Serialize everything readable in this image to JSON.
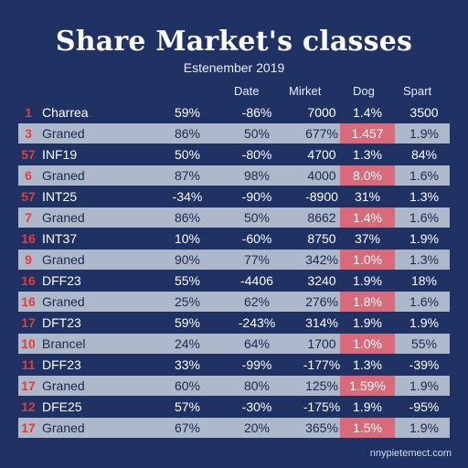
{
  "title": "Share Market's classes",
  "subtitle": "Estenember 2019",
  "columns": [
    "Date",
    "Mirket",
    "Dog",
    "Spart"
  ],
  "rows": [
    {
      "num": "1",
      "name": "Charrea",
      "c1": "59%",
      "c2": "-86%",
      "c3": "7000",
      "c4": "1.4%",
      "c5": "3500",
      "highlight": false
    },
    {
      "num": "3",
      "name": "Graned",
      "c1": "86%",
      "c2": "50%",
      "c3": "677%",
      "c4": "1.457",
      "c5": "1.9%",
      "highlight": true
    },
    {
      "num": "57",
      "name": "INF19",
      "c1": "50%",
      "c2": "-80%",
      "c3": "4700",
      "c4": "1.3%",
      "c5": "84%",
      "highlight": false
    },
    {
      "num": "6",
      "name": "Graned",
      "c1": "87%",
      "c2": "98%",
      "c3": "4000",
      "c4": "8.0%",
      "c5": "1.6%",
      "highlight": true
    },
    {
      "num": "57",
      "name": "INT25",
      "c1": "-34%",
      "c2": "-90%",
      "c3": "-8900",
      "c4": "31%",
      "c5": "1.3%",
      "highlight": false
    },
    {
      "num": "7",
      "name": "Graned",
      "c1": "86%",
      "c2": "50%",
      "c3": "8662",
      "c4": "1.4%",
      "c5": "1.6%",
      "highlight": true
    },
    {
      "num": "16",
      "name": "INT37",
      "c1": "10%",
      "c2": "-60%",
      "c3": "8750",
      "c4": "37%",
      "c5": "1.9%",
      "highlight": false
    },
    {
      "num": "9",
      "name": "Graned",
      "c1": "90%",
      "c2": "77%",
      "c3": "342%",
      "c4": "1.0%",
      "c5": "1.3%",
      "highlight": true
    },
    {
      "num": "16",
      "name": "DFF23",
      "c1": "55%",
      "c2": "-4406",
      "c3": "3240",
      "c4": "1.9%",
      "c5": "18%",
      "highlight": false
    },
    {
      "num": "16",
      "name": "Graned",
      "c1": "25%",
      "c2": "62%",
      "c3": "276%",
      "c4": "1.8%",
      "c5": "1.6%",
      "highlight": true
    },
    {
      "num": "17",
      "name": "DFT23",
      "c1": "59%",
      "c2": "-243%",
      "c3": "314%",
      "c4": "1.9%",
      "c5": "1.9%",
      "highlight": false
    },
    {
      "num": "10",
      "name": "Brancel",
      "c1": "24%",
      "c2": "64%",
      "c3": "1700",
      "c4": "1.0%",
      "c5": "55%",
      "highlight": true
    },
    {
      "num": "11",
      "name": "DFF23",
      "c1": "33%",
      "c2": "-99%",
      "c3": "-177%",
      "c4": "1.3%",
      "c5": "-39%",
      "highlight": false
    },
    {
      "num": "17",
      "name": "Graned",
      "c1": "60%",
      "c2": "80%",
      "c3": "125%",
      "c4": "1.59%",
      "c5": "1.9%",
      "highlight": true
    },
    {
      "num": "12",
      "name": "DFE25",
      "c1": "57%",
      "c2": "-30%",
      "c3": "-175%",
      "c4": "1.9%",
      "c5": "-95%",
      "highlight": false
    },
    {
      "num": "17",
      "name": "Graned",
      "c1": "67%",
      "c2": "20%",
      "c3": "365%",
      "c4": "1.5%",
      "c5": "1.9%",
      "highlight": true
    }
  ],
  "watermark": "nnypietemect.com",
  "colors": {
    "background": "#1f3263",
    "light_row": "#aeb8cb",
    "highlight": "#d86a7a",
    "rank_number": "#e23c3c"
  }
}
